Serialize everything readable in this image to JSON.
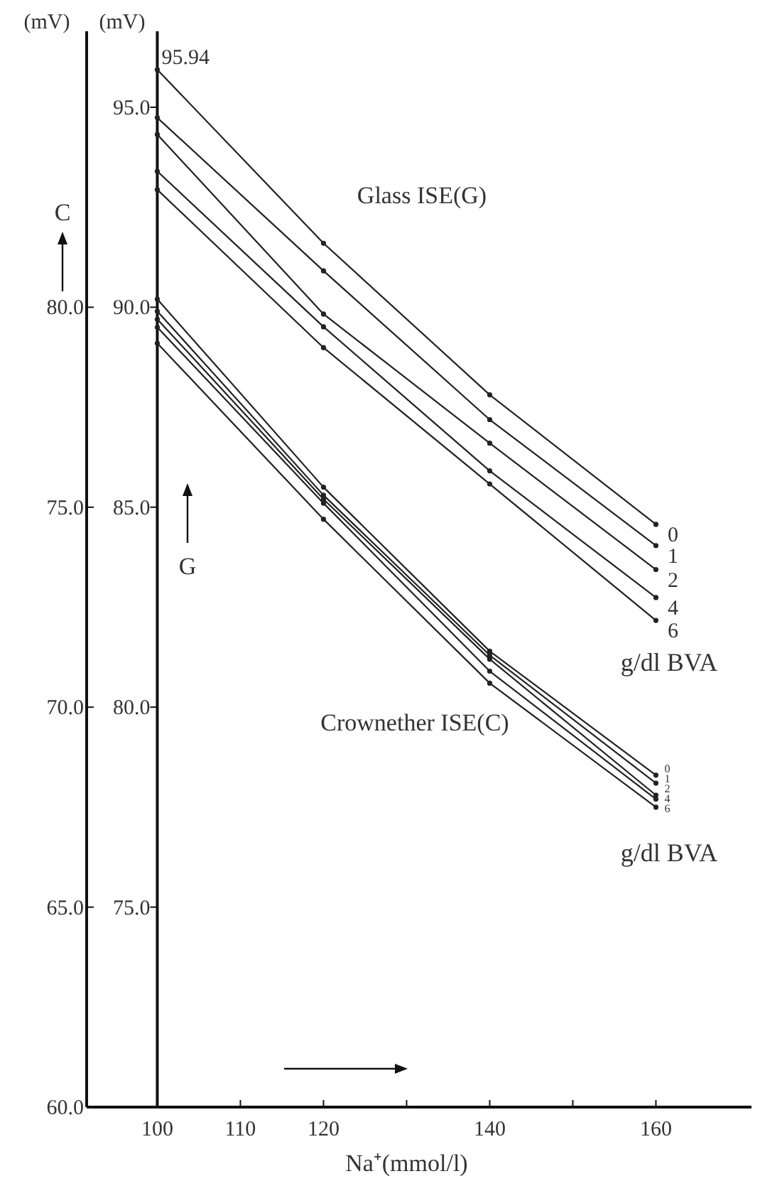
{
  "chart_data": {
    "type": "line",
    "xlabel": "Na⁺(mmol/l)",
    "ylabel": "(mV)",
    "y2label": "(mV)",
    "x": [
      100,
      120,
      140,
      160
    ],
    "xlim": [
      91.5,
      171.5
    ],
    "xticks": [
      100,
      110,
      120,
      {
        "value": 130,
        "label": null
      },
      140,
      {
        "value": 150,
        "label": null
      },
      160
    ],
    "ylim": [
      70,
      96.9
    ],
    "yticks": [
      {
        "value": 75,
        "label": "75.0"
      },
      {
        "value": 80,
        "label": "80.0"
      },
      {
        "value": 85,
        "label": "85.0"
      },
      {
        "value": 90,
        "label": "90.0"
      },
      {
        "value": 95,
        "label": "95.0"
      }
    ],
    "y2lim": [
      60,
      86.9
    ],
    "y2ticks": [
      {
        "value": 60,
        "label": "60.0"
      },
      {
        "value": 65,
        "label": "65.0"
      },
      {
        "value": 70,
        "label": "70.0"
      },
      {
        "value": 75,
        "label": "75.0"
      },
      {
        "value": 80,
        "label": "80.0"
      }
    ],
    "series": [
      {
        "name": "0",
        "color": "#222222",
        "values": [
          95.94,
          91.6,
          87.81,
          84.57
        ]
      },
      {
        "name": "1",
        "color": "#222222",
        "values": [
          94.74,
          90.91,
          87.19,
          84.04
        ]
      },
      {
        "name": "2",
        "color": "#222222",
        "values": [
          94.32,
          89.83,
          86.6,
          83.44
        ]
      },
      {
        "name": "4",
        "color": "#222222",
        "values": [
          93.4,
          89.51,
          85.91,
          82.74
        ]
      },
      {
        "name": "6",
        "color": "#222222",
        "values": [
          92.94,
          88.99,
          85.58,
          82.17
        ]
      },
      {
        "name": "0",
        "color": "#222222",
        "axis": "y2",
        "values": [
          80.2,
          75.5,
          71.4,
          68.3
        ]
      },
      {
        "name": "1",
        "color": "#222222",
        "axis": "y2",
        "values": [
          79.9,
          75.3,
          71.3,
          68.1
        ]
      },
      {
        "name": "2",
        "color": "#222222",
        "axis": "y2",
        "values": [
          79.7,
          75.2,
          71.2,
          67.8
        ]
      },
      {
        "name": "4",
        "color": "#222222",
        "axis": "y2",
        "values": [
          79.5,
          75.1,
          70.9,
          67.7
        ]
      },
      {
        "name": "6",
        "color": "#222222",
        "axis": "y2",
        "values": [
          79.1,
          74.7,
          70.6,
          67.5
        ]
      }
    ],
    "annotations": [
      {
        "text": "95.94",
        "x": 100,
        "y": 95.94
      },
      "Glass ISE(G)",
      "Crownether ISE(C)",
      "g/dl BVA",
      "g/dl BVA",
      "C",
      "G"
    ],
    "marker": "circle",
    "line_style": "solid",
    "grid": false
  }
}
